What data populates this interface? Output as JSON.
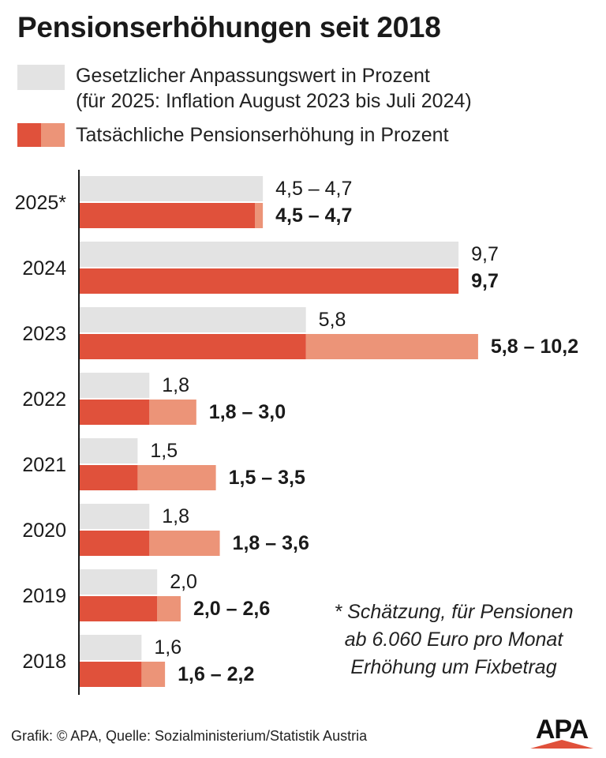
{
  "title": "Pensionserhöhungen seit 2018",
  "legend": {
    "line1": "Gesetzlicher Anpassungswert in Prozent",
    "line2": "(für 2025: Inflation August 2023 bis Juli 2024)",
    "line3": "Tatsächliche Pensionserhöhung in Prozent"
  },
  "colors": {
    "statutory": "#e3e3e3",
    "actual_base": "#e0513b",
    "actual_extra": "#ec9478",
    "axis": "#1a1a1a"
  },
  "chart_data": {
    "type": "bar",
    "orientation": "horizontal",
    "categories": [
      "2025*",
      "2024",
      "2023",
      "2022",
      "2021",
      "2020",
      "2019",
      "2018"
    ],
    "series": [
      {
        "name": "Gesetzlicher Anpassungswert in Prozent",
        "values": [
          4.7,
          9.7,
          5.8,
          1.8,
          1.5,
          1.8,
          2.0,
          1.6
        ],
        "labels": [
          "4,5 – 4,7",
          "9,7",
          "5,8",
          "1,8",
          "1,5",
          "1,8",
          "2,0",
          "1,6"
        ]
      },
      {
        "name": "Tatsächliche Pensionserhöhung in Prozent",
        "min_values": [
          4.5,
          9.7,
          5.8,
          1.8,
          1.5,
          1.8,
          2.0,
          1.6
        ],
        "max_values": [
          4.7,
          9.7,
          10.2,
          3.0,
          3.5,
          3.6,
          2.6,
          2.2
        ],
        "labels": [
          "4,5 – 4,7",
          "9,7",
          "5,8 – 10,2",
          "1,8 – 3,0",
          "1,5 – 3,5",
          "1,8 – 3,6",
          "2,0 – 2,6",
          "1,6 – 2,2"
        ]
      }
    ],
    "xlim": [
      0,
      10.2
    ],
    "grid": false,
    "legend_position": "top"
  },
  "footnote": [
    "* Schätzung, für Pensionen",
    "ab 6.060 Euro pro Monat",
    "Erhöhung um Fixbetrag"
  ],
  "source": "Grafik: © APA, Quelle: Sozialministerium/Statistik Austria",
  "logo_text": "APA"
}
